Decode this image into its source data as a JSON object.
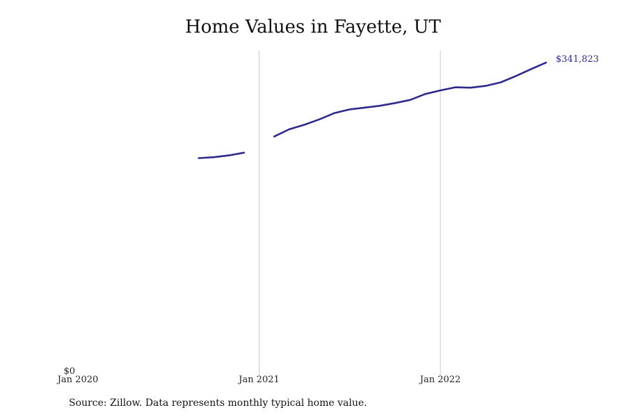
{
  "chart_data": {
    "type": "line",
    "title": "Home Values in Fayette, UT",
    "xlabel": "",
    "ylabel": "",
    "x_ticks": [
      {
        "date": "2020-01",
        "label": "Jan 2020"
      },
      {
        "date": "2021-01",
        "label": "Jan 2021"
      },
      {
        "date": "2022-01",
        "label": "Jan 2022"
      }
    ],
    "y_ticks": [
      {
        "value": 0,
        "label": "$0"
      }
    ],
    "xlim": [
      "2020-01",
      "2022-12"
    ],
    "ylim": [
      0,
      355000
    ],
    "grid": "vertical lines at year ticks",
    "series": [
      {
        "color": "#2e2a8c",
        "points": [
          {
            "date": "2020-09",
            "value": 236000
          },
          {
            "date": "2020-10",
            "value": 237000
          },
          {
            "date": "2020-11",
            "value": 239000
          },
          {
            "date": "2020-12",
            "value": 242000
          },
          {
            "date": "2021-01",
            "value": null
          },
          {
            "date": "2021-02",
            "value": 260000
          },
          {
            "date": "2021-03",
            "value": 268000
          },
          {
            "date": "2021-04",
            "value": 273000
          },
          {
            "date": "2021-05",
            "value": 279000
          },
          {
            "date": "2021-06",
            "value": 286000
          },
          {
            "date": "2021-07",
            "value": 290000
          },
          {
            "date": "2021-08",
            "value": 292000
          },
          {
            "date": "2021-09",
            "value": 294000
          },
          {
            "date": "2021-10",
            "value": 297000
          },
          {
            "date": "2021-11",
            "value": 300500
          },
          {
            "date": "2021-12",
            "value": 307000
          },
          {
            "date": "2022-01",
            "value": 311000
          },
          {
            "date": "2022-02",
            "value": 314500
          },
          {
            "date": "2022-03",
            "value": 314000
          },
          {
            "date": "2022-04",
            "value": 316000
          },
          {
            "date": "2022-05",
            "value": 320000
          },
          {
            "date": "2022-06",
            "value": 327000
          },
          {
            "date": "2022-07",
            "value": 334500
          },
          {
            "date": "2022-08",
            "value": 341823
          }
        ]
      }
    ],
    "end_label": "$341,823"
  },
  "source_note": "Source: Zillow. Data represents monthly typical home value."
}
